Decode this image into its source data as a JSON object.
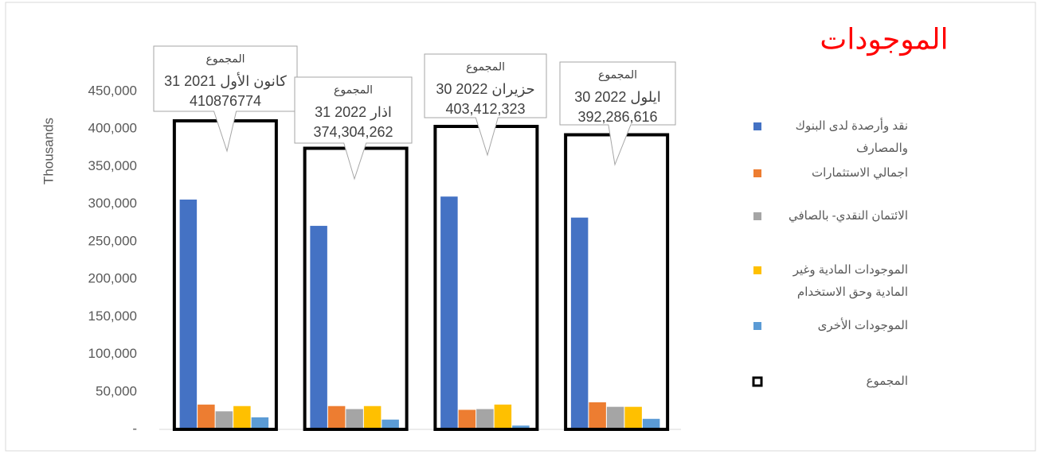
{
  "chart_data": {
    "type": "bar",
    "title": "الموجودات",
    "y_label": "Thousands",
    "categories": [
      "31 كانون الأول 2021",
      "31 اذار 2022",
      "30 حزيران 2022",
      "30 ايلول 2022"
    ],
    "series": [
      {
        "name": "نقد وأرصدة لدى البنوك والمصارف",
        "color": "#4472c4",
        "values": [
          306000,
          271000,
          310000,
          282000
        ]
      },
      {
        "name": "اجمالي الاستثمارات",
        "color": "#ed7d31",
        "values": [
          33000,
          31000,
          26000,
          36000
        ]
      },
      {
        "name": "الائتمان النقدي- بالصافي",
        "color": "#a5a5a5",
        "values": [
          24000,
          27000,
          27000,
          30000
        ]
      },
      {
        "name": "الموجودات المادية وغير المادية وحق الاستخدام",
        "color": "#ffc000",
        "values": [
          31000,
          31000,
          33000,
          30000
        ]
      },
      {
        "name": "الموجودات الأخرى",
        "color": "#5b9bd5",
        "values": [
          16000,
          13000,
          5000,
          14000
        ]
      },
      {
        "name": "المجموع",
        "color": "#000000",
        "style": "outline",
        "values": [
          410876.774,
          374304.262,
          403412.323,
          392286.616
        ],
        "value_labels": [
          "410876774",
          "374,304,262",
          "403,412,323",
          "392,286,616"
        ]
      }
    ],
    "ylim": [
      0,
      450000
    ],
    "yticks": [
      {
        "value": 0,
        "label": "-"
      },
      {
        "value": 50000,
        "label": "50,000"
      },
      {
        "value": 100000,
        "label": "100,000"
      },
      {
        "value": 150000,
        "label": "150,000"
      },
      {
        "value": 200000,
        "label": "200,000"
      },
      {
        "value": 250000,
        "label": "250,000"
      },
      {
        "value": 300000,
        "label": "300,000"
      },
      {
        "value": 350000,
        "label": "350,000"
      },
      {
        "value": 400000,
        "label": "400,000"
      },
      {
        "value": 450000,
        "label": "450,000"
      }
    ],
    "grid": false,
    "legend": "right"
  }
}
